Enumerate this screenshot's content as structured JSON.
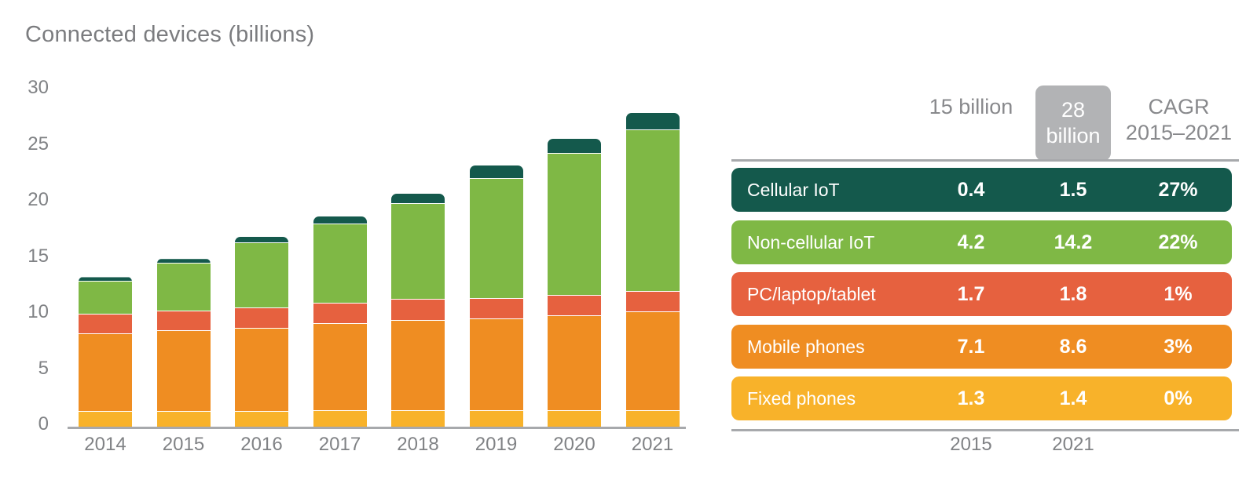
{
  "title": "Connected devices (billions)",
  "colors": {
    "cellular_iot": "#14594c",
    "non_cellular_iot": "#7fb845",
    "pc_laptop_tablet": "#e6613f",
    "mobile_phones": "#ef8d22",
    "fixed_phones": "#f8b22a",
    "axis_gray": "#a7a9ac",
    "label_gray": "#808285",
    "badge_gray": "#b2b3b5"
  },
  "chart_data": {
    "type": "bar",
    "stacked": true,
    "title": "Connected devices (billions)",
    "categories": [
      "2014",
      "2015",
      "2016",
      "2017",
      "2018",
      "2019",
      "2020",
      "2021"
    ],
    "series": [
      {
        "name": "Fixed phones",
        "color_key": "fixed_phones",
        "values": [
          1.3,
          1.3,
          1.3,
          1.4,
          1.4,
          1.4,
          1.4,
          1.4
        ]
      },
      {
        "name": "Mobile phones",
        "color_key": "mobile_phones",
        "values": [
          6.8,
          7.1,
          7.3,
          7.6,
          7.9,
          8.0,
          8.3,
          8.6
        ]
      },
      {
        "name": "PC/laptop/tablet",
        "color_key": "pc_laptop_tablet",
        "values": [
          1.7,
          1.7,
          1.8,
          1.8,
          1.8,
          1.8,
          1.8,
          1.8
        ]
      },
      {
        "name": "Non-cellular IoT",
        "color_key": "non_cellular_iot",
        "values": [
          2.9,
          4.2,
          5.7,
          6.9,
          8.4,
          10.5,
          12.4,
          14.2
        ]
      },
      {
        "name": "Cellular IoT",
        "color_key": "cellular_iot",
        "values": [
          0.4,
          0.4,
          0.5,
          0.7,
          0.9,
          1.2,
          1.3,
          1.5
        ]
      }
    ],
    "ylim": [
      0,
      30
    ],
    "yticks": [
      0,
      5,
      10,
      15,
      20,
      25,
      30
    ],
    "grid": false,
    "legend_position": "right-table"
  },
  "table": {
    "header": {
      "col_2015": "15 billion",
      "col_2021": "28 billion",
      "col_cagr": "CAGR 2015–2021"
    },
    "rows": [
      {
        "label": "Cellular IoT",
        "v2015": "0.4",
        "v2021": "1.5",
        "cagr": "27%",
        "color_key": "cellular_iot"
      },
      {
        "label": "Non-cellular IoT",
        "v2015": "4.2",
        "v2021": "14.2",
        "cagr": "22%",
        "color_key": "non_cellular_iot"
      },
      {
        "label": "PC/laptop/tablet",
        "v2015": "1.7",
        "v2021": "1.8",
        "cagr": "1%",
        "color_key": "pc_laptop_tablet"
      },
      {
        "label": "Mobile phones",
        "v2015": "7.1",
        "v2021": "8.6",
        "cagr": "3%",
        "color_key": "mobile_phones"
      },
      {
        "label": "Fixed phones",
        "v2015": "1.3",
        "v2021": "1.4",
        "cagr": "0%",
        "color_key": "fixed_phones"
      }
    ],
    "footer": {
      "y2015": "2015",
      "y2021": "2021"
    }
  }
}
